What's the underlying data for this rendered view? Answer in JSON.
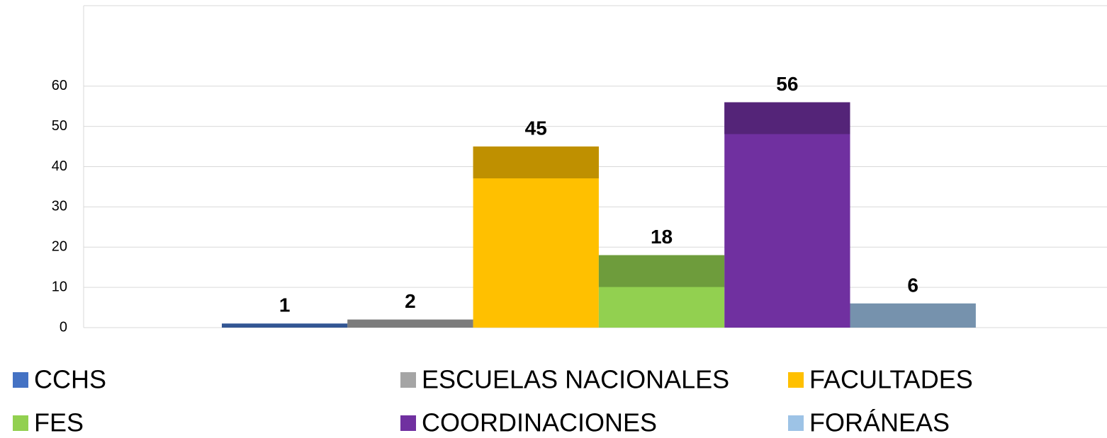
{
  "chart_data": {
    "type": "bar",
    "series": [
      {
        "name": "CCHS",
        "color": "#4472c4",
        "values": [
          1
        ]
      },
      {
        "name": "ESCUELAS NACIONALES",
        "color": "#a5a5a5",
        "values": [
          2
        ]
      },
      {
        "name": "FACULTADES",
        "color": "#ffc000",
        "values": [
          45
        ]
      },
      {
        "name": "FES",
        "color": "#92d050",
        "values": [
          18
        ]
      },
      {
        "name": "COORDINACIONES",
        "color": "#7030a0",
        "values": [
          56
        ]
      },
      {
        "name": "FORÁNEAS",
        "color": "#9dc3e6",
        "values": [
          6
        ]
      }
    ],
    "ylim": [
      0,
      80
    ],
    "yticks": [
      0,
      10,
      20,
      30,
      40,
      50,
      60
    ],
    "grid": true,
    "legend": "bottom"
  }
}
